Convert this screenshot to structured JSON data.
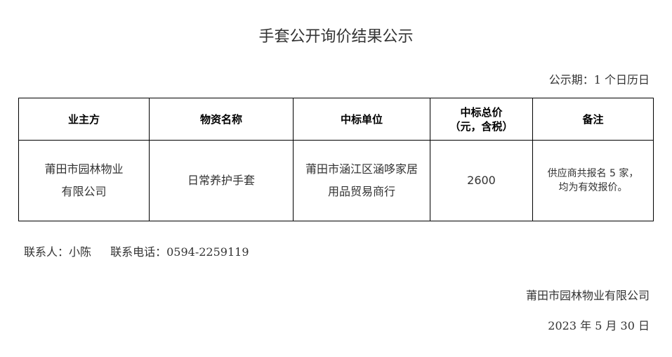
{
  "title": "手套公开询价结果公示",
  "period": "公示期：1 个日历日",
  "table": {
    "headers": [
      "业主方",
      "物资名称",
      "中标单位",
      "中标总价",
      "（元，含税）",
      "备注"
    ],
    "row": {
      "owner_line1": "莆田市园林物业",
      "owner_line2": "有限公司",
      "item": "日常养护手套",
      "winner_line1": "莆田市涵江区涵哆家居",
      "winner_line2": "用品贸易商行",
      "price": "2600",
      "note_line1": "供应商共报名 5 家，",
      "note_line2": "均为有效报价。"
    }
  },
  "contact": {
    "person": "联系人：小陈",
    "phone": "联系电话：0594-2259119"
  },
  "footer": {
    "org": "莆田市园林物业有限公司",
    "date": "2023 年 5 月 30 日"
  }
}
